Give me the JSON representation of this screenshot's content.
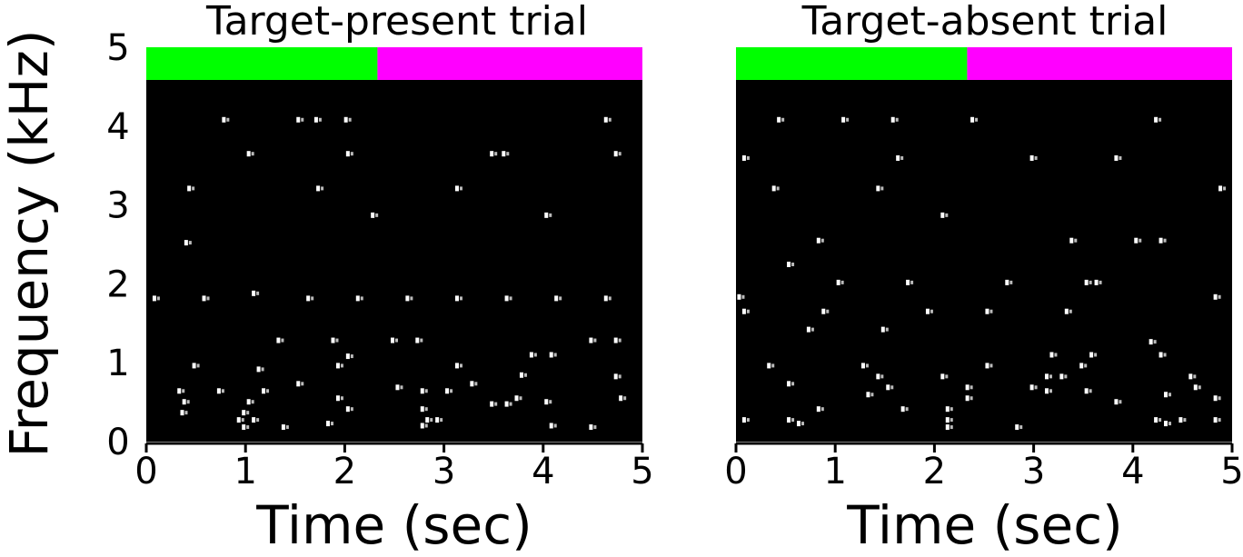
{
  "chart_data": [
    {
      "type": "scatter",
      "title": "Target-present trial",
      "xlabel": "Time (sec)",
      "ylabel": "Frequency (kHz)",
      "xlim": [
        0,
        5
      ],
      "ylim": [
        0,
        5
      ],
      "xticks": [
        "0",
        "1",
        "2",
        "3",
        "4",
        "5"
      ],
      "yticks": [
        "0",
        "1",
        "2",
        "3",
        "4",
        "5"
      ],
      "background": "#000000",
      "point_color": "#ffffff",
      "segments": [
        {
          "x_start": 0,
          "x_end": 2.33,
          "color": "#00ff00"
        },
        {
          "x_start": 2.33,
          "x_end": 5,
          "color": "#ff00ff"
        }
      ],
      "points": [
        [
          0.8,
          4.45
        ],
        [
          1.55,
          4.45
        ],
        [
          1.73,
          4.45
        ],
        [
          2.03,
          4.45
        ],
        [
          4.65,
          4.45
        ],
        [
          1.05,
          3.98
        ],
        [
          2.05,
          3.98
        ],
        [
          3.5,
          3.98
        ],
        [
          3.62,
          3.98
        ],
        [
          4.75,
          3.98
        ],
        [
          0.45,
          3.5
        ],
        [
          1.75,
          3.5
        ],
        [
          3.15,
          3.5
        ],
        [
          2.3,
          3.13
        ],
        [
          4.05,
          3.13
        ],
        [
          0.42,
          2.75
        ],
        [
          0.1,
          1.98
        ],
        [
          0.6,
          1.98
        ],
        [
          1.1,
          2.05
        ],
        [
          1.65,
          1.98
        ],
        [
          2.15,
          1.98
        ],
        [
          2.65,
          1.98
        ],
        [
          3.15,
          1.98
        ],
        [
          3.65,
          1.98
        ],
        [
          4.15,
          1.98
        ],
        [
          4.65,
          1.98
        ],
        [
          1.35,
          1.4
        ],
        [
          1.9,
          1.4
        ],
        [
          2.5,
          1.4
        ],
        [
          2.75,
          1.4
        ],
        [
          4.5,
          1.4
        ],
        [
          4.75,
          1.4
        ],
        [
          2.05,
          1.18
        ],
        [
          3.9,
          1.2
        ],
        [
          4.1,
          1.2
        ],
        [
          0.5,
          1.05
        ],
        [
          1.15,
          1.0
        ],
        [
          1.95,
          1.05
        ],
        [
          3.15,
          1.05
        ],
        [
          3.8,
          0.92
        ],
        [
          4.75,
          0.9
        ],
        [
          0.35,
          0.7
        ],
        [
          0.75,
          0.7
        ],
        [
          1.2,
          0.7
        ],
        [
          1.55,
          0.8
        ],
        [
          2.55,
          0.75
        ],
        [
          2.8,
          0.7
        ],
        [
          3.05,
          0.7
        ],
        [
          3.3,
          0.8
        ],
        [
          0.4,
          0.55
        ],
        [
          1.05,
          0.55
        ],
        [
          1.95,
          0.6
        ],
        [
          3.75,
          0.6
        ],
        [
          4.05,
          0.55
        ],
        [
          4.8,
          0.6
        ],
        [
          0.38,
          0.4
        ],
        [
          1.0,
          0.4
        ],
        [
          2.05,
          0.45
        ],
        [
          2.8,
          0.45
        ],
        [
          3.5,
          0.52
        ],
        [
          3.65,
          0.52
        ],
        [
          0.95,
          0.3
        ],
        [
          1.1,
          0.3
        ],
        [
          2.85,
          0.3
        ],
        [
          1.0,
          0.2
        ],
        [
          1.4,
          0.2
        ],
        [
          1.85,
          0.25
        ],
        [
          2.8,
          0.22
        ],
        [
          2.95,
          0.3
        ],
        [
          4.1,
          0.22
        ],
        [
          4.5,
          0.2
        ]
      ]
    },
    {
      "type": "scatter",
      "title": "Target-absent trial",
      "xlabel": "Time (sec)",
      "ylabel": "",
      "xlim": [
        0,
        5
      ],
      "ylim": [
        0,
        5
      ],
      "xticks": [
        "0",
        "1",
        "2",
        "3",
        "4",
        "5"
      ],
      "yticks": [],
      "background": "#000000",
      "point_color": "#ffffff",
      "segments": [
        {
          "x_start": 0,
          "x_end": 2.33,
          "color": "#00ff00"
        },
        {
          "x_start": 2.33,
          "x_end": 5,
          "color": "#ff00ff"
        }
      ],
      "points": [
        [
          0.45,
          4.45
        ],
        [
          1.1,
          4.45
        ],
        [
          1.6,
          4.45
        ],
        [
          2.4,
          4.45
        ],
        [
          4.25,
          4.45
        ],
        [
          0.1,
          3.92
        ],
        [
          1.65,
          3.92
        ],
        [
          3.0,
          3.92
        ],
        [
          3.85,
          3.92
        ],
        [
          0.4,
          3.5
        ],
        [
          1.45,
          3.5
        ],
        [
          4.9,
          3.5
        ],
        [
          2.1,
          3.13
        ],
        [
          0.85,
          2.78
        ],
        [
          3.4,
          2.78
        ],
        [
          4.05,
          2.78
        ],
        [
          4.3,
          2.78
        ],
        [
          0.55,
          2.45
        ],
        [
          1.05,
          2.2
        ],
        [
          1.75,
          2.2
        ],
        [
          2.75,
          2.2
        ],
        [
          3.55,
          2.2
        ],
        [
          3.65,
          2.2
        ],
        [
          0.05,
          2.0
        ],
        [
          4.85,
          2.0
        ],
        [
          0.1,
          1.8
        ],
        [
          0.9,
          1.8
        ],
        [
          1.95,
          1.8
        ],
        [
          2.55,
          1.8
        ],
        [
          3.35,
          1.8
        ],
        [
          0.75,
          1.55
        ],
        [
          1.5,
          1.55
        ],
        [
          4.2,
          1.38
        ],
        [
          3.2,
          1.2
        ],
        [
          3.6,
          1.2
        ],
        [
          4.3,
          1.2
        ],
        [
          0.35,
          1.05
        ],
        [
          1.3,
          1.05
        ],
        [
          2.55,
          1.05
        ],
        [
          3.5,
          1.05
        ],
        [
          1.45,
          0.9
        ],
        [
          2.1,
          0.9
        ],
        [
          3.15,
          0.9
        ],
        [
          3.3,
          0.9
        ],
        [
          4.6,
          0.9
        ],
        [
          0.55,
          0.8
        ],
        [
          1.55,
          0.75
        ],
        [
          2.35,
          0.75
        ],
        [
          3.0,
          0.75
        ],
        [
          4.65,
          0.75
        ],
        [
          1.35,
          0.65
        ],
        [
          2.35,
          0.6
        ],
        [
          3.15,
          0.7
        ],
        [
          3.55,
          0.7
        ],
        [
          4.35,
          0.65
        ],
        [
          4.85,
          0.6
        ],
        [
          0.85,
          0.45
        ],
        [
          1.7,
          0.45
        ],
        [
          2.15,
          0.45
        ],
        [
          3.85,
          0.55
        ],
        [
          0.1,
          0.3
        ],
        [
          0.55,
          0.3
        ],
        [
          0.65,
          0.25
        ],
        [
          2.15,
          0.3
        ],
        [
          4.25,
          0.3
        ],
        [
          4.5,
          0.3
        ],
        [
          4.85,
          0.3
        ],
        [
          2.15,
          0.2
        ],
        [
          2.85,
          0.2
        ],
        [
          4.35,
          0.25
        ]
      ]
    }
  ]
}
